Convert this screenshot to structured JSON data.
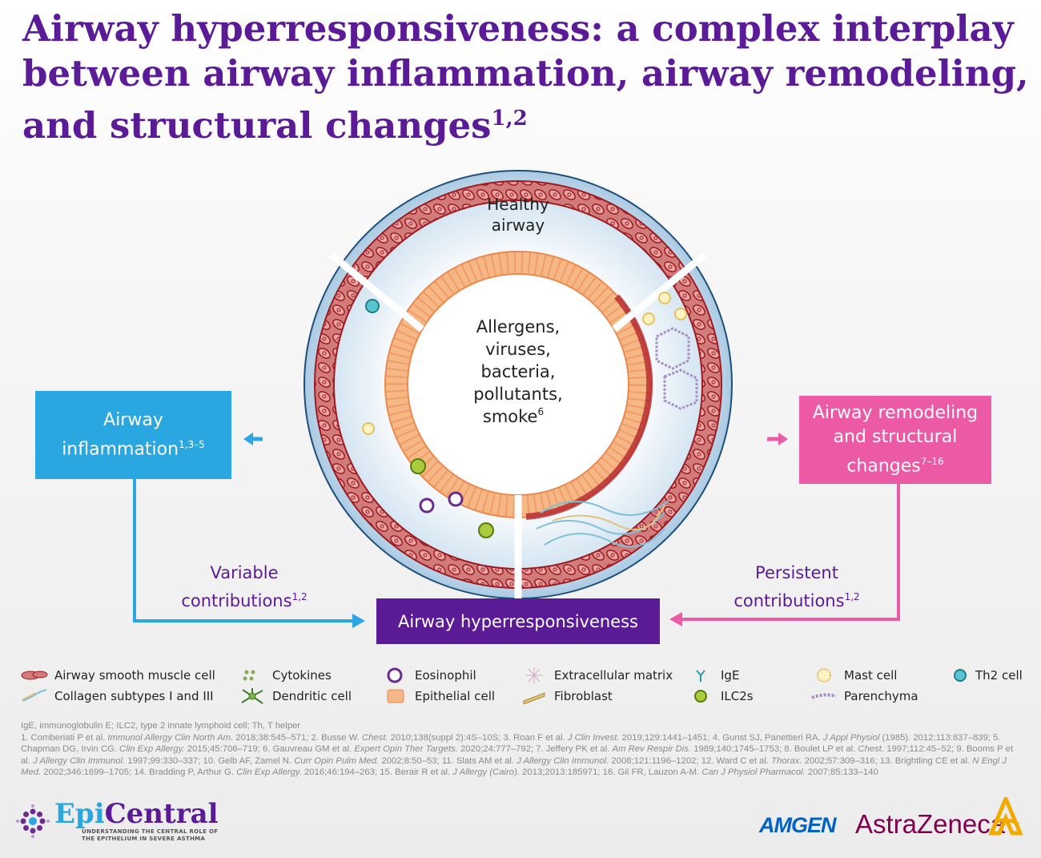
{
  "title": {
    "text": "Airway hyperresponsiveness: a complex interplay between airway inflammation, airway remodeling, and structural changes",
    "sup": "1,2"
  },
  "diagram": {
    "healthy_airway": [
      "Healthy",
      "airway"
    ],
    "center_text": [
      "Allergens,",
      "viruses,",
      "bacteria,",
      "pollutants,",
      "smoke"
    ],
    "center_sup": "6",
    "inflammation_box": {
      "line1": "Airway",
      "line2": "inflammation",
      "sup": "1,3–5",
      "color": "#2aa6e0"
    },
    "remodeling_box": {
      "line1": "Airway remodeling",
      "line2": "and structural",
      "line3": "changes",
      "sup": "7–16",
      "color": "#ec5aa6"
    },
    "ahr_box": {
      "label": "Airway hyperresponsiveness",
      "color": "#5b1a96"
    },
    "variable": {
      "line1": "Variable",
      "line2": "contributions",
      "sup": "1,2"
    },
    "persistent": {
      "line1": "Persistent",
      "line2": "contributions",
      "sup": "1,2"
    }
  },
  "legend": [
    {
      "label": "Airway smooth muscle cell",
      "icon": "smooth-muscle-cell-icon"
    },
    {
      "label": "Collagen subtypes I and III",
      "icon": "collagen-icon"
    },
    {
      "label": "Cytokines",
      "icon": "cytokines-icon"
    },
    {
      "label": "Dendritic cell",
      "icon": "dendritic-cell-icon"
    },
    {
      "label": "Eosinophil",
      "icon": "eosinophil-icon"
    },
    {
      "label": "Epithelial cell",
      "icon": "epithelial-cell-icon"
    },
    {
      "label": "Extracellular matrix",
      "icon": "extracellular-matrix-icon"
    },
    {
      "label": "Fibroblast",
      "icon": "fibroblast-icon"
    },
    {
      "label": "IgE",
      "icon": "ige-icon"
    },
    {
      "label": "ILC2s",
      "icon": "ilc2-icon"
    },
    {
      "label": "Mast cell",
      "icon": "mast-cell-icon"
    },
    {
      "label": "Parenchyma",
      "icon": "parenchyma-icon"
    },
    {
      "label": "Th2 cell",
      "icon": "th2-cell-icon"
    }
  ],
  "footnotes": {
    "abbreviations": "IgE, immunoglobulin E; ILC2, type 2 innate lymphoid cell; Th, T helper",
    "references": [
      [
        "1. Comberiati P et al. ",
        "Immunol Allergy Clin North Am.",
        " 2018;38:545–571; "
      ],
      [
        "2. Busse W. ",
        "Chest.",
        " 2010;138(suppl 2):4S–10S; "
      ],
      [
        "3. Roan F et al. ",
        "J Clin Invest.",
        " 2019;129:1441–1451; "
      ],
      [
        "4. Gunst SJ, Panettieri RA. ",
        "J Appl Physiol",
        " (1985). 2012;113:837–839; "
      ],
      [
        "5. Chapman DG, Irvin CG. ",
        "Clin Exp Allergy.",
        " 2015;45:706–719; "
      ],
      [
        "6. Gauvreau GM et al. ",
        "Expert Opin Ther Targets.",
        " 2020;24:777–792; "
      ],
      [
        "7. Jeffery PK et al. ",
        "Am Rev Respir Dis.",
        " 1989;140:1745–1753; "
      ],
      [
        "8. Boulet LP et al. ",
        "Chest.",
        " 1997;112:45–52; "
      ],
      [
        "9. Booms P et al. ",
        "J Allergy Clin Immunol.",
        " 1997;99:330–337; "
      ],
      [
        "10. Gelb AF, Zamel N. ",
        "Curr Opin Pulm Med.",
        " 2002;8:50–53; "
      ],
      [
        "11. Slats AM et al. ",
        "J Allergy Clin Immunol.",
        " 2008;121:1196–1202; "
      ],
      [
        "12. Ward C et al. ",
        "Thorax.",
        " 2002;57:309–316; "
      ],
      [
        "13. Brightling CE et al. ",
        "N Engl J Med.",
        " 2002;346:1699–1705; "
      ],
      [
        "14. Bradding P, Arthur G. ",
        "Clin Exp Allergy.",
        " 2016;46:194–263; "
      ],
      [
        "15. Berair R et al. ",
        "J Allergy (Cairo).",
        " 2013;2013:185971; "
      ],
      [
        "16. Gil FR, Lauzon A-M. ",
        "Can J Physiol Pharmacol.",
        " 2007;85:133–140"
      ]
    ]
  },
  "logos": {
    "epicentral": {
      "part1": "Epi",
      "part2": "Central",
      "tagline1": "UNDERSTANDING THE CENTRAL ROLE OF",
      "tagline2": "THE EPITHELIUM IN SEVERE ASTHMA"
    },
    "amgen": "AMGEN",
    "astrazeneca": "AstraZeneca"
  }
}
